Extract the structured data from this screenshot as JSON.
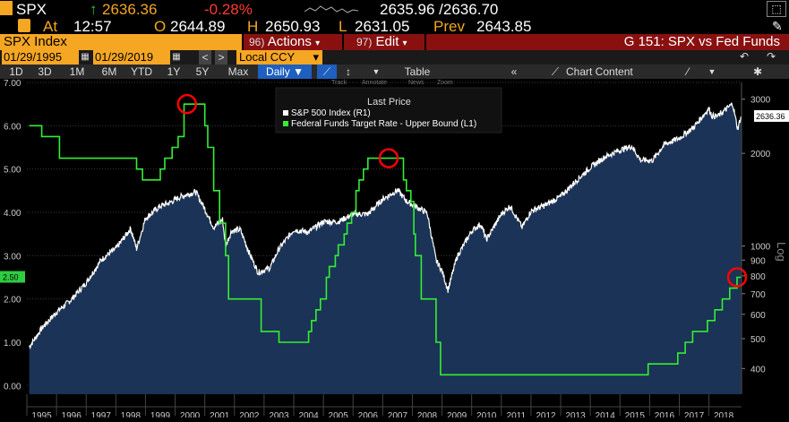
{
  "header": {
    "ticker": "SPX",
    "price": "2636.36",
    "change": "-0.28%",
    "bid_ask": "2635.96 /2636.70",
    "at_label": "At",
    "time": "12:57",
    "open_label": "O",
    "open": "2644.89",
    "high_label": "H",
    "high": "2650.93",
    "low_label": "L",
    "low": "2631.05",
    "prev_label": "Prev",
    "prev": "2643.85"
  },
  "toolbar": {
    "security": "SPX Index",
    "actions_code": "96)",
    "actions_label": "Actions",
    "edit_code": "97)",
    "edit_label": "Edit",
    "chart_title": "G 151: SPX vs Fed Funds"
  },
  "range": {
    "start_date": "01/29/1995",
    "end_date": "01/29/2019",
    "currency": "Local CCY"
  },
  "periods": [
    "1D",
    "3D",
    "1M",
    "6M",
    "YTD",
    "1Y",
    "5Y",
    "Max"
  ],
  "frequency": "Daily",
  "table_label": "Table",
  "chart_content_label": "Chart Content",
  "mini_toolbar": [
    "Track",
    "Annotate",
    "News",
    "Zoom"
  ],
  "colors": {
    "accent": "#f5a623",
    "fed_line": "#33ee33",
    "area_fill": "#1b3356",
    "index_line": "#ffffff",
    "circle": "#ff0000"
  },
  "chart_data": {
    "type": "line",
    "legend_title": "Last Price",
    "legend_position": "top-center",
    "x_ticks": [
      "1995",
      "1996",
      "1997",
      "1998",
      "1999",
      "2000",
      "2001",
      "2002",
      "2003",
      "2004",
      "2005",
      "2006",
      "2007",
      "2008",
      "2009",
      "2010",
      "2011",
      "2012",
      "2013",
      "2014",
      "2015",
      "2016",
      "2017",
      "2018"
    ],
    "left_axis": {
      "ticks": [
        "0.00",
        "1.00",
        "2.00",
        "3.00",
        "4.00",
        "5.00",
        "6.00",
        "7.00"
      ],
      "ylim": [
        -0.2,
        7.0
      ],
      "current_marker": "2.50"
    },
    "right_axis": {
      "scale": "log",
      "label": "Log",
      "ticks": [
        "400",
        "500",
        "600",
        "700",
        "800",
        "900",
        "1000",
        "2000",
        "3000"
      ],
      "current_marker": "2636.36"
    },
    "series": [
      {
        "name": "S&P 500 Index  (R1)",
        "axis": "right",
        "style": "area",
        "x": [
          1995.08,
          1995.5,
          1996.0,
          1996.5,
          1997.0,
          1997.5,
          1997.8,
          1998.0,
          1998.5,
          1998.7,
          1999.0,
          1999.5,
          1999.8,
          2000.2,
          2000.7,
          2001.0,
          2001.3,
          2001.6,
          2001.7,
          2001.9,
          2002.2,
          2002.5,
          2002.8,
          2003.2,
          2003.5,
          2004.0,
          2004.5,
          2005.0,
          2005.5,
          2006.0,
          2006.5,
          2007.0,
          2007.5,
          2007.8,
          2008.2,
          2008.5,
          2008.8,
          2009.0,
          2009.2,
          2009.5,
          2010.0,
          2010.3,
          2010.5,
          2011.0,
          2011.3,
          2011.7,
          2012.0,
          2012.5,
          2013.0,
          2013.5,
          2014.0,
          2014.5,
          2015.0,
          2015.4,
          2015.7,
          2016.1,
          2016.5,
          2017.0,
          2017.5,
          2018.0,
          2018.1,
          2018.3,
          2018.8,
          2018.97,
          2019.08
        ],
        "y": [
          470,
          540,
          610,
          670,
          760,
          900,
          950,
          980,
          1140,
          980,
          1230,
          1350,
          1380,
          1450,
          1500,
          1320,
          1150,
          1220,
          1000,
          1120,
          1130,
          950,
          820,
          850,
          980,
          1130,
          1110,
          1200,
          1200,
          1270,
          1270,
          1420,
          1520,
          1400,
          1330,
          1280,
          900,
          830,
          720,
          920,
          1120,
          1180,
          1050,
          1270,
          1350,
          1150,
          1300,
          1360,
          1450,
          1620,
          1800,
          1950,
          2050,
          2110,
          1900,
          1900,
          2140,
          2240,
          2440,
          2800,
          2650,
          2640,
          2900,
          2400,
          2636
        ]
      },
      {
        "name": "Federal Funds Target Rate - Upper Bound  (L1)",
        "axis": "left",
        "style": "step",
        "x": [
          1995.08,
          1995.5,
          1996.1,
          1998.7,
          1998.9,
          1999.5,
          1999.65,
          1999.9,
          2000.1,
          2000.3,
          2001.0,
          2001.1,
          2001.3,
          2001.5,
          2001.7,
          2001.8,
          2002.9,
          2003.5,
          2004.5,
          2004.6,
          2004.75,
          2004.9,
          2005.1,
          2005.2,
          2005.4,
          2005.5,
          2005.7,
          2005.8,
          2005.95,
          2006.1,
          2006.2,
          2006.35,
          2006.5,
          2007.7,
          2007.8,
          2007.95,
          2008.05,
          2008.1,
          2008.3,
          2008.8,
          2008.95,
          2015.95,
          2016.95,
          2017.2,
          2017.45,
          2017.95,
          2018.2,
          2018.45,
          2018.7,
          2018.95,
          2019.08
        ],
        "y": [
          6.0,
          5.75,
          5.25,
          5.0,
          4.75,
          5.0,
          5.25,
          5.5,
          5.75,
          6.5,
          6.0,
          5.5,
          4.5,
          3.75,
          3.0,
          2.0,
          1.25,
          1.0,
          1.25,
          1.5,
          1.75,
          2.0,
          2.5,
          2.75,
          3.0,
          3.25,
          3.5,
          3.75,
          4.0,
          4.5,
          4.75,
          5.0,
          5.25,
          4.75,
          4.5,
          4.25,
          3.5,
          3.0,
          2.0,
          1.0,
          0.25,
          0.5,
          0.75,
          1.0,
          1.25,
          1.5,
          1.75,
          2.0,
          2.25,
          2.5,
          2.5
        ]
      }
    ],
    "highlights": [
      {
        "series": 1,
        "x": 2000.4,
        "y": 6.5
      },
      {
        "series": 1,
        "x": 2007.2,
        "y": 5.25
      },
      {
        "series": 1,
        "x": 2018.95,
        "y": 2.5
      }
    ]
  }
}
